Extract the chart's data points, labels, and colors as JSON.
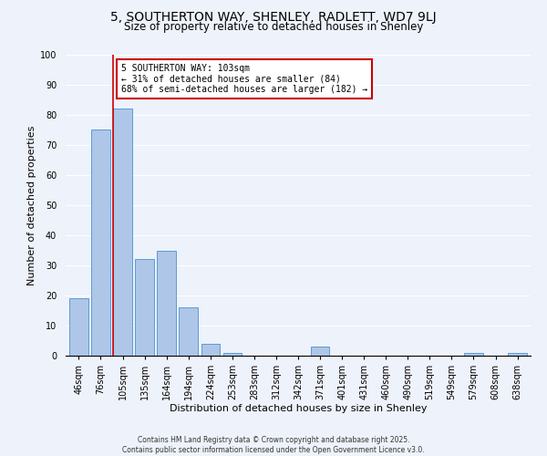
{
  "title": "5, SOUTHERTON WAY, SHENLEY, RADLETT, WD7 9LJ",
  "subtitle": "Size of property relative to detached houses in Shenley",
  "xlabel": "Distribution of detached houses by size in Shenley",
  "ylabel": "Number of detached properties",
  "bar_labels": [
    "46sqm",
    "76sqm",
    "105sqm",
    "135sqm",
    "164sqm",
    "194sqm",
    "224sqm",
    "253sqm",
    "283sqm",
    "312sqm",
    "342sqm",
    "371sqm",
    "401sqm",
    "431sqm",
    "460sqm",
    "490sqm",
    "519sqm",
    "549sqm",
    "579sqm",
    "608sqm",
    "638sqm"
  ],
  "bar_values": [
    19,
    75,
    82,
    32,
    35,
    16,
    4,
    1,
    0,
    0,
    0,
    3,
    0,
    0,
    0,
    0,
    0,
    0,
    1,
    0,
    1
  ],
  "bar_color": "#aec6e8",
  "bar_edge_color": "#5b9bd5",
  "ylim": [
    0,
    100
  ],
  "yticks": [
    0,
    10,
    20,
    30,
    40,
    50,
    60,
    70,
    80,
    90,
    100
  ],
  "vline_x_index": 2,
  "vline_color": "#cc0000",
  "annotation_text": "5 SOUTHERTON WAY: 103sqm\n← 31% of detached houses are smaller (84)\n68% of semi-detached houses are larger (182) →",
  "annotation_box_color": "#ffffff",
  "annotation_box_edge": "#cc0000",
  "footer1": "Contains HM Land Registry data © Crown copyright and database right 2025.",
  "footer2": "Contains public sector information licensed under the Open Government Licence v3.0.",
  "bg_color": "#eef2fa",
  "plot_bg_color": "#eef2fa",
  "title_fontsize": 10,
  "subtitle_fontsize": 8.5,
  "axis_label_fontsize": 8,
  "tick_fontsize": 7,
  "annotation_fontsize": 7,
  "footer_fontsize": 5.5
}
